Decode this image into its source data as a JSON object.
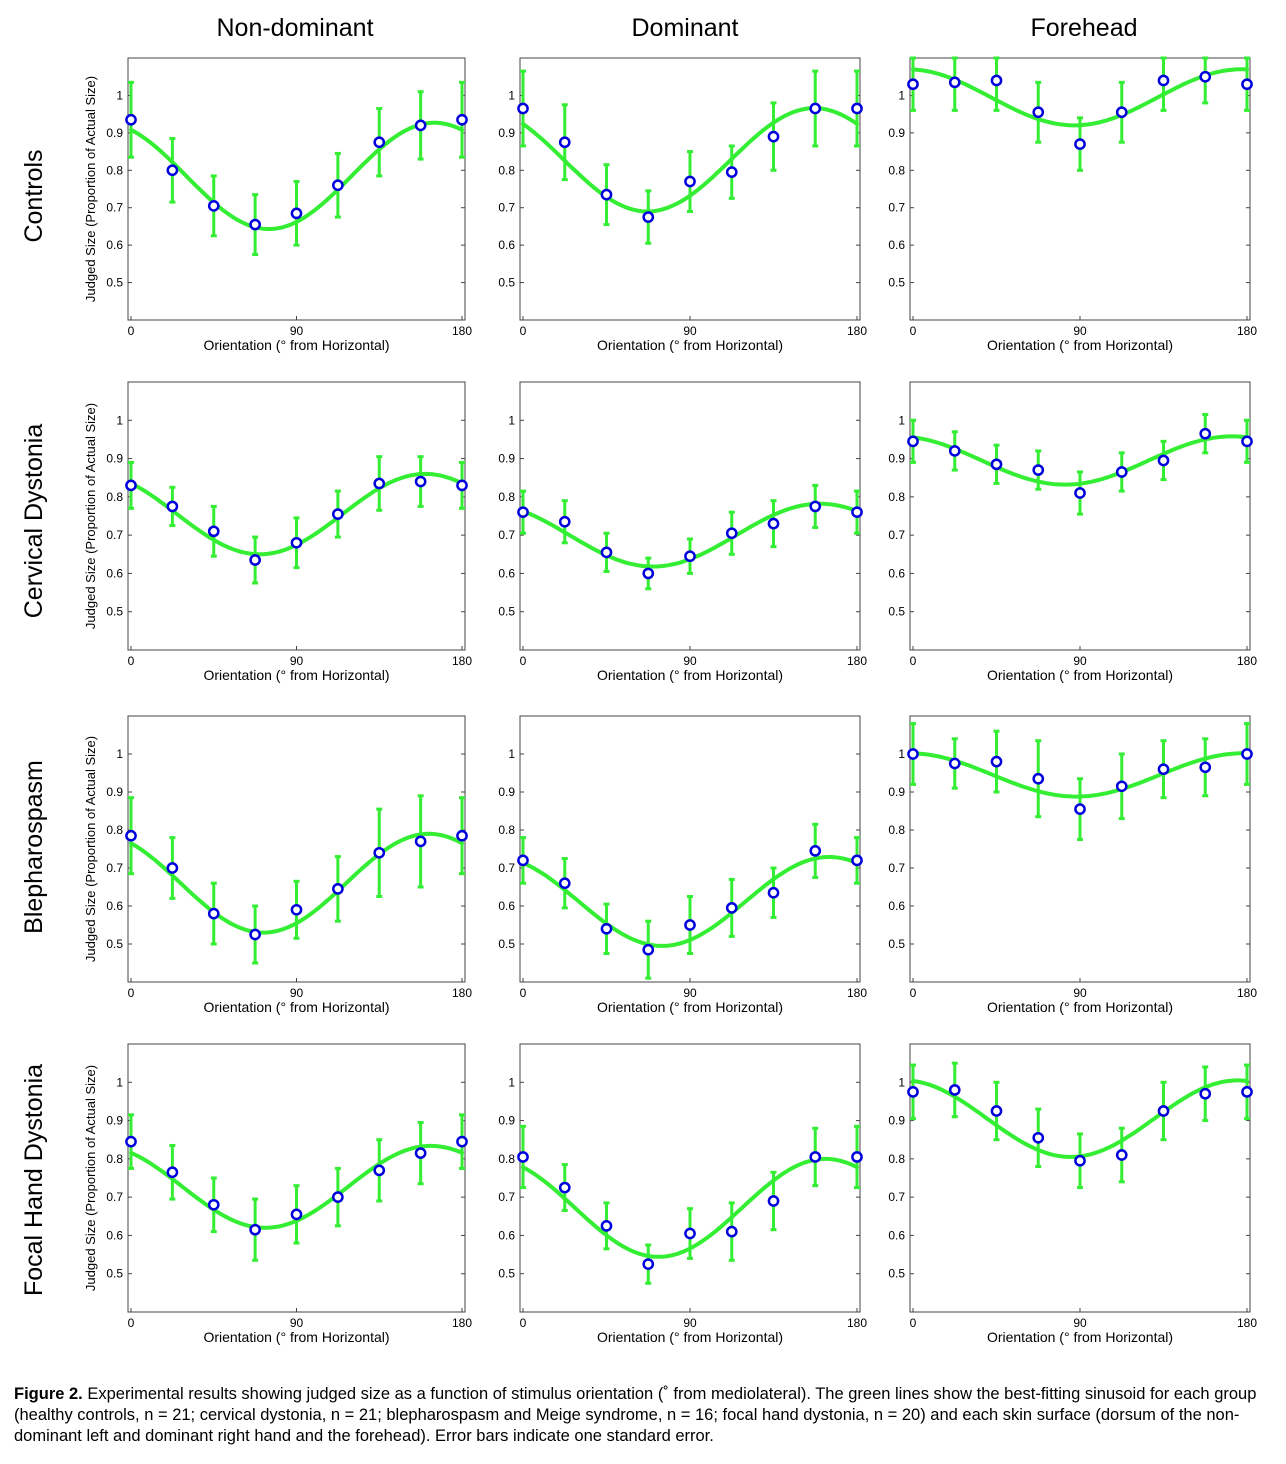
{
  "figure": {
    "columns": [
      "Non-dominant",
      "Dominant",
      "Forehead"
    ],
    "rows": [
      "Controls",
      "Cervical Dystonia",
      "Blepharospasm",
      "Focal Hand Dystonia"
    ],
    "caption_label": "Figure 2.",
    "caption_text": " Experimental results showing judged size as a function of stimulus orientation (˚ from mediolateral). The green lines show the best-fitting sinusoid for each group (healthy controls, n = 21; cervical dystonia, n = 21; blepharospasm and Meige syndrome, n = 16; focal hand dystonia, n = 20) and each skin surface (dorsum of the non-dominant left and dominant right hand and the forehead). Error bars indicate one standard error."
  },
  "colors": {
    "fit_line": "#33ee33",
    "error_bar": "#33ee33",
    "marker": "#0000dd",
    "axes": "#000000"
  },
  "chart_data": [
    {
      "type": "scatter",
      "row": "Controls",
      "col": "Non-dominant",
      "xlabel": "Orientation (° from Horizontal)",
      "ylabel": "Judged Size (Proportion of Actual Size)",
      "xlim": [
        0,
        180
      ],
      "ylim": [
        0.4,
        1.1
      ],
      "xticks": [
        0,
        90,
        180
      ],
      "yticks": [
        0.5,
        0.6,
        0.7,
        0.8,
        0.9,
        1
      ],
      "x": [
        0,
        22.5,
        45,
        67.5,
        90,
        112.5,
        135,
        157.5,
        180
      ],
      "y": [
        0.935,
        0.8,
        0.705,
        0.655,
        0.685,
        0.76,
        0.875,
        0.92,
        0.935
      ],
      "err": [
        0.1,
        0.085,
        0.08,
        0.08,
        0.085,
        0.085,
        0.09,
        0.09,
        0.1
      ],
      "fit": {
        "mean": 0.785,
        "amplitude": 0.142,
        "peak_deg": 165
      }
    },
    {
      "type": "scatter",
      "row": "Controls",
      "col": "Dominant",
      "xlabel": "Orientation (° from Horizontal)",
      "ylabel": "",
      "xlim": [
        0,
        180
      ],
      "ylim": [
        0.4,
        1.1
      ],
      "xticks": [
        0,
        90,
        180
      ],
      "yticks": [
        0.5,
        0.6,
        0.7,
        0.8,
        0.9,
        1
      ],
      "x": [
        0,
        22.5,
        45,
        67.5,
        90,
        112.5,
        135,
        157.5,
        180
      ],
      "y": [
        0.965,
        0.875,
        0.735,
        0.675,
        0.77,
        0.795,
        0.89,
        0.965,
        0.965
      ],
      "err": [
        0.1,
        0.1,
        0.08,
        0.07,
        0.08,
        0.07,
        0.09,
        0.1,
        0.1
      ],
      "fit": {
        "mean": 0.828,
        "amplitude": 0.138,
        "peak_deg": 157
      }
    },
    {
      "type": "scatter",
      "row": "Controls",
      "col": "Forehead",
      "xlabel": "Orientation (° from Horizontal)",
      "ylabel": "",
      "xlim": [
        0,
        180
      ],
      "ylim": [
        0.4,
        1.1
      ],
      "xticks": [
        0,
        90,
        180
      ],
      "yticks": [
        0.5,
        0.6,
        0.7,
        0.8,
        0.9,
        1
      ],
      "x": [
        0,
        22.5,
        45,
        67.5,
        90,
        112.5,
        135,
        157.5,
        180
      ],
      "y": [
        1.03,
        1.035,
        1.04,
        0.955,
        0.87,
        0.955,
        1.04,
        1.05,
        1.03
      ],
      "err": [
        0.07,
        0.075,
        0.08,
        0.08,
        0.07,
        0.08,
        0.08,
        0.07,
        0.07
      ],
      "fit": {
        "mean": 0.995,
        "amplitude": 0.075,
        "peak_deg": 177
      }
    },
    {
      "type": "scatter",
      "row": "Cervical Dystonia",
      "col": "Non-dominant",
      "xlabel": "Orientation (° from Horizontal)",
      "ylabel": "Judged Size (Proportion of Actual Size)",
      "xlim": [
        0,
        180
      ],
      "ylim": [
        0.4,
        1.1
      ],
      "xticks": [
        0,
        90,
        180
      ],
      "yticks": [
        0.5,
        0.6,
        0.7,
        0.8,
        0.9,
        1
      ],
      "x": [
        0,
        22.5,
        45,
        67.5,
        90,
        112.5,
        135,
        157.5,
        180
      ],
      "y": [
        0.83,
        0.775,
        0.71,
        0.635,
        0.68,
        0.755,
        0.835,
        0.84,
        0.83
      ],
      "err": [
        0.06,
        0.05,
        0.065,
        0.06,
        0.065,
        0.06,
        0.07,
        0.065,
        0.06
      ],
      "fit": {
        "mean": 0.755,
        "amplitude": 0.105,
        "peak_deg": 160
      }
    },
    {
      "type": "scatter",
      "row": "Cervical Dystonia",
      "col": "Dominant",
      "xlabel": "Orientation (° from Horizontal)",
      "ylabel": "",
      "xlim": [
        0,
        180
      ],
      "ylim": [
        0.4,
        1.1
      ],
      "xticks": [
        0,
        90,
        180
      ],
      "yticks": [
        0.5,
        0.6,
        0.7,
        0.8,
        0.9,
        1
      ],
      "x": [
        0,
        22.5,
        45,
        67.5,
        90,
        112.5,
        135,
        157.5,
        180
      ],
      "y": [
        0.76,
        0.735,
        0.655,
        0.6,
        0.645,
        0.705,
        0.73,
        0.775,
        0.76
      ],
      "err": [
        0.055,
        0.055,
        0.05,
        0.04,
        0.045,
        0.055,
        0.06,
        0.055,
        0.055
      ],
      "fit": {
        "mean": 0.7,
        "amplitude": 0.082,
        "peak_deg": 160
      }
    },
    {
      "type": "scatter",
      "row": "Cervical Dystonia",
      "col": "Forehead",
      "xlabel": "Orientation (° from Horizontal)",
      "ylabel": "",
      "xlim": [
        0,
        180
      ],
      "ylim": [
        0.4,
        1.1
      ],
      "xticks": [
        0,
        90,
        180
      ],
      "yticks": [
        0.5,
        0.6,
        0.7,
        0.8,
        0.9,
        1
      ],
      "x": [
        0,
        22.5,
        45,
        67.5,
        90,
        112.5,
        135,
        157.5,
        180
      ],
      "y": [
        0.945,
        0.92,
        0.885,
        0.87,
        0.81,
        0.865,
        0.895,
        0.965,
        0.945
      ],
      "err": [
        0.055,
        0.05,
        0.05,
        0.05,
        0.055,
        0.05,
        0.05,
        0.05,
        0.055
      ],
      "fit": {
        "mean": 0.895,
        "amplitude": 0.063,
        "peak_deg": 172
      }
    },
    {
      "type": "scatter",
      "row": "Blepharospasm",
      "col": "Non-dominant",
      "xlabel": "Orientation (° from Horizontal)",
      "ylabel": "Judged Size (Proportion of Actual Size)",
      "xlim": [
        0,
        180
      ],
      "ylim": [
        0.4,
        1.1
      ],
      "xticks": [
        0,
        90,
        180
      ],
      "yticks": [
        0.5,
        0.6,
        0.7,
        0.8,
        0.9,
        1
      ],
      "x": [
        0,
        22.5,
        45,
        67.5,
        90,
        112.5,
        135,
        157.5,
        180
      ],
      "y": [
        0.785,
        0.7,
        0.58,
        0.525,
        0.59,
        0.645,
        0.74,
        0.77,
        0.785
      ],
      "err": [
        0.1,
        0.08,
        0.08,
        0.075,
        0.075,
        0.085,
        0.115,
        0.12,
        0.1
      ],
      "fit": {
        "mean": 0.66,
        "amplitude": 0.13,
        "peak_deg": 162
      }
    },
    {
      "type": "scatter",
      "row": "Blepharospasm",
      "col": "Dominant",
      "xlabel": "Orientation (° from Horizontal)",
      "ylabel": "",
      "xlim": [
        0,
        180
      ],
      "ylim": [
        0.4,
        1.1
      ],
      "xticks": [
        0,
        90,
        180
      ],
      "yticks": [
        0.5,
        0.6,
        0.7,
        0.8,
        0.9,
        1
      ],
      "x": [
        0,
        22.5,
        45,
        67.5,
        90,
        112.5,
        135,
        157.5,
        180
      ],
      "y": [
        0.72,
        0.66,
        0.54,
        0.485,
        0.55,
        0.595,
        0.635,
        0.745,
        0.72
      ],
      "err": [
        0.06,
        0.065,
        0.065,
        0.075,
        0.075,
        0.075,
        0.065,
        0.07,
        0.06
      ],
      "fit": {
        "mean": 0.612,
        "amplitude": 0.117,
        "peak_deg": 165
      }
    },
    {
      "type": "scatter",
      "row": "Blepharospasm",
      "col": "Forehead",
      "xlabel": "Orientation (° from Horizontal)",
      "ylabel": "",
      "xlim": [
        0,
        180
      ],
      "ylim": [
        0.4,
        1.1
      ],
      "xticks": [
        0,
        90,
        180
      ],
      "yticks": [
        0.5,
        0.6,
        0.7,
        0.8,
        0.9,
        1
      ],
      "x": [
        0,
        22.5,
        45,
        67.5,
        90,
        112.5,
        135,
        157.5,
        180
      ],
      "y": [
        1.0,
        0.975,
        0.98,
        0.935,
        0.855,
        0.915,
        0.96,
        0.965,
        1.0
      ],
      "err": [
        0.08,
        0.065,
        0.08,
        0.1,
        0.08,
        0.085,
        0.075,
        0.075,
        0.08
      ],
      "fit": {
        "mean": 0.945,
        "amplitude": 0.057,
        "peak_deg": 178
      }
    },
    {
      "type": "scatter",
      "row": "Focal Hand Dystonia",
      "col": "Non-dominant",
      "xlabel": "Orientation (° from Horizontal)",
      "ylabel": "Judged Size (Proportion of Actual Size)",
      "xlim": [
        0,
        180
      ],
      "ylim": [
        0.4,
        1.1
      ],
      "xticks": [
        0,
        90,
        180
      ],
      "yticks": [
        0.5,
        0.6,
        0.7,
        0.8,
        0.9,
        1
      ],
      "x": [
        0,
        22.5,
        45,
        67.5,
        90,
        112.5,
        135,
        157.5,
        180
      ],
      "y": [
        0.845,
        0.765,
        0.68,
        0.615,
        0.655,
        0.7,
        0.77,
        0.815,
        0.845
      ],
      "err": [
        0.07,
        0.07,
        0.07,
        0.08,
        0.075,
        0.075,
        0.08,
        0.08,
        0.07
      ],
      "fit": {
        "mean": 0.727,
        "amplitude": 0.107,
        "peak_deg": 163
      }
    },
    {
      "type": "scatter",
      "row": "Focal Hand Dystonia",
      "col": "Dominant",
      "xlabel": "Orientation (° from Horizontal)",
      "ylabel": "",
      "xlim": [
        0,
        180
      ],
      "ylim": [
        0.4,
        1.1
      ],
      "xticks": [
        0,
        90,
        180
      ],
      "yticks": [
        0.5,
        0.6,
        0.7,
        0.8,
        0.9,
        1
      ],
      "x": [
        0,
        22.5,
        45,
        67.5,
        90,
        112.5,
        135,
        157.5,
        180
      ],
      "y": [
        0.805,
        0.725,
        0.625,
        0.525,
        0.605,
        0.61,
        0.69,
        0.805,
        0.805
      ],
      "err": [
        0.08,
        0.06,
        0.06,
        0.05,
        0.065,
        0.075,
        0.075,
        0.075,
        0.08
      ],
      "fit": {
        "mean": 0.672,
        "amplitude": 0.128,
        "peak_deg": 163
      }
    },
    {
      "type": "scatter",
      "row": "Focal Hand Dystonia",
      "col": "Forehead",
      "xlabel": "Orientation (° from Horizontal)",
      "ylabel": "",
      "xlim": [
        0,
        180
      ],
      "ylim": [
        0.4,
        1.1
      ],
      "xticks": [
        0,
        90,
        180
      ],
      "yticks": [
        0.5,
        0.6,
        0.7,
        0.8,
        0.9,
        1
      ],
      "x": [
        0,
        22.5,
        45,
        67.5,
        90,
        112.5,
        135,
        157.5,
        180
      ],
      "y": [
        0.975,
        0.98,
        0.925,
        0.855,
        0.795,
        0.81,
        0.925,
        0.97,
        0.975
      ],
      "err": [
        0.07,
        0.07,
        0.075,
        0.075,
        0.07,
        0.07,
        0.075,
        0.07,
        0.07
      ],
      "fit": {
        "mean": 0.905,
        "amplitude": 0.1,
        "peak_deg": 175
      }
    }
  ]
}
